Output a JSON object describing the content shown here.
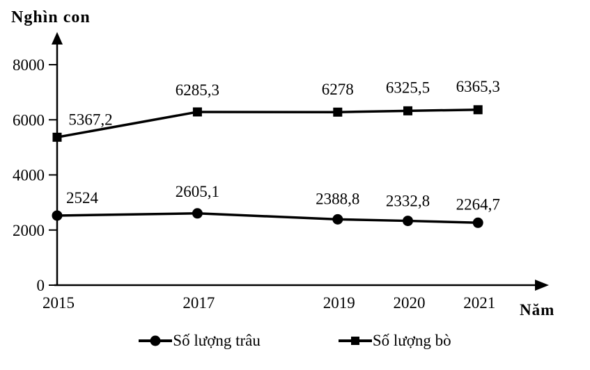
{
  "chart_data": {
    "type": "line",
    "title": "Nghìn con",
    "ylabel": "Nghìn con",
    "xlabel": "Năm",
    "x": [
      2015,
      2017,
      2019,
      2020,
      2021
    ],
    "x_tick_labels": [
      "2015",
      "2017",
      "2019",
      "2020",
      "2021"
    ],
    "y_ticks": [
      0,
      2000,
      4000,
      6000,
      8000
    ],
    "y_tick_labels": [
      "0",
      "2000",
      "4000",
      "6000",
      "8000"
    ],
    "ylim": [
      0,
      8800
    ],
    "xlim": [
      2015,
      2022
    ],
    "grid": false,
    "legend_position": "bottom-center",
    "line_color": "#000000",
    "background": "#ffffff",
    "series": [
      {
        "name": "Số lượng trâu",
        "marker": "circle",
        "values": [
          2524,
          2605.1,
          2388.8,
          2332.8,
          2264.7
        ],
        "value_labels": [
          "2524",
          "2605,1",
          "2388,8",
          "2332,8",
          "2264,7"
        ],
        "label_offsets": [
          [
            36,
            -18
          ],
          [
            0,
            -24
          ],
          [
            0,
            -22
          ],
          [
            0,
            -21
          ],
          [
            0,
            -19
          ]
        ]
      },
      {
        "name": "Số lượng bò",
        "marker": "square",
        "values": [
          5367.2,
          6285.3,
          6278,
          6325.5,
          6365.3
        ],
        "value_labels": [
          "5367,2",
          "6285,3",
          "6278",
          "6325,5",
          "6365,3"
        ],
        "label_offsets": [
          [
            48,
            -18
          ],
          [
            0,
            -24
          ],
          [
            0,
            -25
          ],
          [
            0,
            -26
          ],
          [
            0,
            -26
          ]
        ]
      }
    ]
  }
}
